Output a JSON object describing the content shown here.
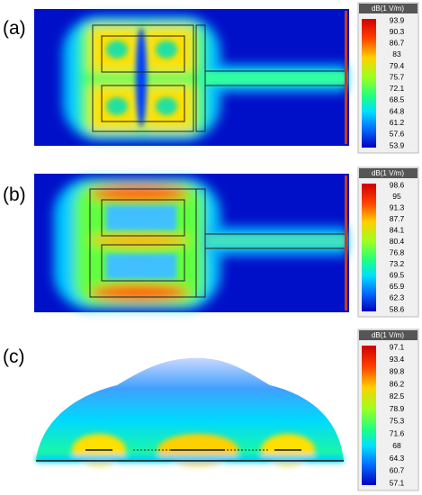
{
  "panels": [
    {
      "label": "(a)",
      "colorbar": {
        "unit": "dB(1 V/m)",
        "ticks": [
          93.9,
          90.3,
          86.7,
          83,
          79.4,
          75.7,
          72.1,
          68.5,
          64.8,
          61.2,
          57.6,
          53.9
        ]
      }
    },
    {
      "label": "(b)",
      "colorbar": {
        "unit": "dB(1 V/m)",
        "ticks": [
          98.6,
          95,
          91.3,
          87.7,
          84.1,
          80.4,
          76.8,
          73.2,
          69.5,
          65.9,
          62.3,
          58.6
        ]
      }
    },
    {
      "label": "(c)",
      "colorbar": {
        "unit": "dB(1 V/m)",
        "ticks": [
          97.1,
          93.4,
          89.8,
          86.2,
          82.5,
          78.9,
          75.3,
          71.6,
          68,
          64.3,
          60.7,
          57.1
        ]
      }
    }
  ]
}
